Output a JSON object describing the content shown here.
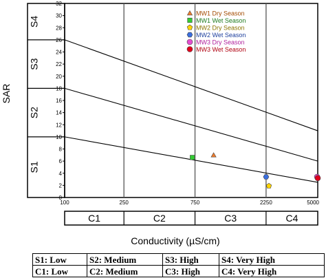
{
  "chart_data": {
    "type": "scatter",
    "ylabel": "SAR",
    "xlabel": "Conductivity (µS/cm)",
    "xscale": "log",
    "xlim": [
      100,
      5000
    ],
    "ylim": [
      0,
      32
    ],
    "x_ticks": [
      {
        "value": 100,
        "label": "100"
      },
      {
        "value": 250,
        "label": "250"
      },
      {
        "value": 750,
        "label": "750"
      },
      {
        "value": 2250,
        "label": "2250"
      },
      {
        "value": 5000,
        "label": "5000"
      }
    ],
    "y_ticks": [
      0,
      2,
      4,
      6,
      8,
      10,
      12,
      14,
      16,
      18,
      20,
      22,
      24,
      26,
      28,
      30,
      32
    ],
    "grid": false,
    "vertical_dividers": [
      250,
      750,
      2250
    ],
    "boundary_lines": [
      {
        "y_start": 10,
        "y_end": 2.5
      },
      {
        "y_start": 18,
        "y_end": 6
      },
      {
        "y_start": 26,
        "y_end": 11
      }
    ],
    "salinity_classes": [
      {
        "label": "C1",
        "from": 100,
        "to": 250
      },
      {
        "label": "C2",
        "from": 250,
        "to": 750
      },
      {
        "label": "C3",
        "from": 750,
        "to": 2250
      },
      {
        "label": "C4",
        "from": 2250,
        "to": 5000
      }
    ],
    "sodium_classes": [
      {
        "label": "S1",
        "from": 0,
        "to": 10
      },
      {
        "label": "S2",
        "from": 10,
        "to": 18
      },
      {
        "label": "S3",
        "from": 18,
        "to": 26
      },
      {
        "label": "S4",
        "from": 26,
        "to": 32
      }
    ],
    "legend_position": "top-right",
    "series": [
      {
        "name": "MW1 Dry Season",
        "marker": "triangle",
        "color": "#f07c2c",
        "text_color": "#a34a00",
        "points": [
          [
            1000,
            7.0
          ]
        ]
      },
      {
        "name": "MW1 Wet Season",
        "marker": "square",
        "color": "#33cc33",
        "text_color": "#1e7a1e",
        "points": [
          [
            720,
            6.6
          ]
        ]
      },
      {
        "name": "MW2 Dry Season",
        "marker": "pentagon",
        "color": "#ffd400",
        "text_color": "#8a7400",
        "points": [
          [
            2350,
            1.9
          ]
        ]
      },
      {
        "name": "MW2 Wet Season",
        "marker": "hexagon",
        "color": "#3a6fe0",
        "text_color": "#1c3e9c",
        "points": [
          [
            2250,
            3.4
          ]
        ]
      },
      {
        "name": "MW3 Dry Season",
        "marker": "circle",
        "color": "#e64fd2",
        "text_color": "#b0209c",
        "points": [
          [
            4950,
            3.4
          ]
        ]
      },
      {
        "name": "MW3 Wet Season",
        "marker": "circle",
        "color": "#e0001c",
        "text_color": "#b00010",
        "points": [
          [
            5000,
            3.2
          ]
        ]
      }
    ]
  },
  "key_table": {
    "rows": [
      [
        "S1: Low",
        "S2: Medium",
        "S3: High",
        "S4: Very High"
      ],
      [
        "C1: Low",
        "C2: Medium",
        "C3: High",
        "C4: Very High"
      ]
    ]
  }
}
